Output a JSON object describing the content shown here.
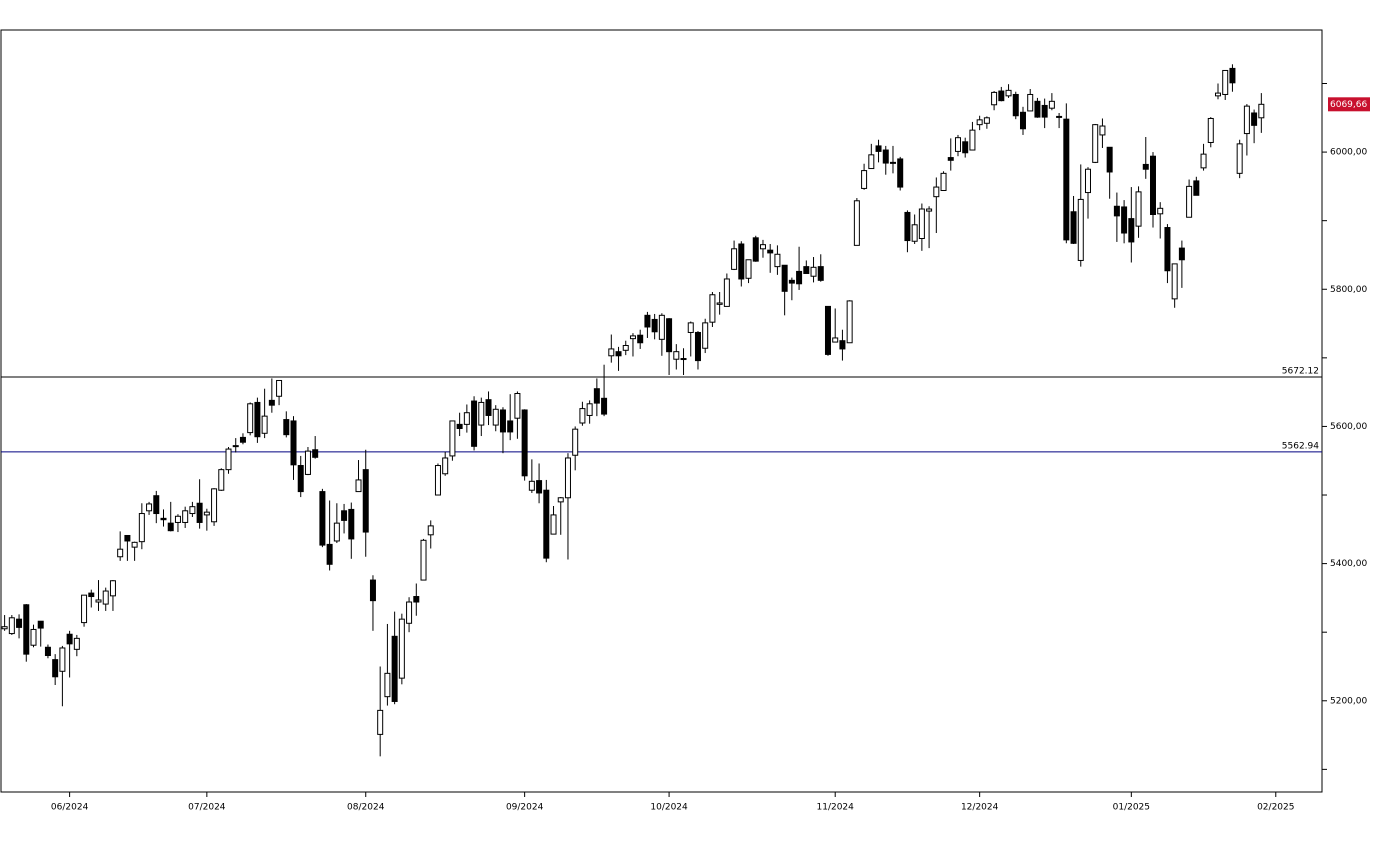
{
  "chart_data": {
    "type": "candlestick",
    "xlim": [
      -0.5,
      182.4
    ],
    "ylim": [
      5067,
      6178
    ],
    "yticks": [
      {
        "value": 5200,
        "label": "5200,00"
      },
      {
        "value": 5400,
        "label": "5400,00"
      },
      {
        "value": 5600,
        "label": "5600,00"
      },
      {
        "value": 5800,
        "label": "5800,00"
      },
      {
        "value": 6000,
        "label": "6000,00"
      }
    ],
    "yticks_minor": [
      5100,
      5300,
      5500,
      5700,
      5900,
      6100
    ],
    "xticks": [
      {
        "value": 9,
        "label": "06/2024"
      },
      {
        "value": 28,
        "label": "07/2024"
      },
      {
        "value": 50,
        "label": "08/2024"
      },
      {
        "value": 72,
        "label": "09/2024"
      },
      {
        "value": 92,
        "label": "10/2024"
      },
      {
        "value": 115,
        "label": "11/2024"
      },
      {
        "value": 135,
        "label": "12/2024"
      },
      {
        "value": 156,
        "label": "01/2025"
      },
      {
        "value": 176,
        "label": "02/2025"
      }
    ],
    "up_color": "#ffffff",
    "down_color": "#000000",
    "hlines": [
      {
        "value": 5672.12,
        "label": "5672.12",
        "color": "#000000"
      },
      {
        "value": 5562.94,
        "label": "5562.94",
        "color": "#000080"
      }
    ],
    "last_price": {
      "value": 6069.66,
      "label": "6069,66",
      "color": "#c8102e"
    },
    "ohlc": [
      [
        5305,
        5325,
        5302,
        5308
      ],
      [
        5298,
        5325,
        5296,
        5321
      ],
      [
        5319,
        5326,
        5291,
        5307
      ],
      [
        5340,
        5341,
        5257,
        5268
      ],
      [
        5281,
        5311,
        5278,
        5304
      ],
      [
        5316,
        5316,
        5279,
        5306
      ],
      [
        5278,
        5282,
        5262,
        5266
      ],
      [
        5260,
        5268,
        5223,
        5235
      ],
      [
        5243,
        5280,
        5192,
        5277
      ],
      [
        5297,
        5302,
        5234,
        5283
      ],
      [
        5275,
        5296,
        5265,
        5291
      ],
      [
        5314,
        5354,
        5308,
        5354
      ],
      [
        5357,
        5362,
        5336,
        5352
      ],
      [
        5344,
        5376,
        5331,
        5347
      ],
      [
        5341,
        5365,
        5331,
        5360
      ],
      [
        5353,
        5376,
        5331,
        5375
      ],
      [
        5410,
        5447,
        5404,
        5421
      ],
      [
        5441,
        5441,
        5404,
        5433
      ],
      [
        5424,
        5432,
        5404,
        5431
      ],
      [
        5432,
        5488,
        5421,
        5473
      ],
      [
        5477,
        5490,
        5471,
        5487
      ],
      [
        5499,
        5506,
        5459,
        5473
      ],
      [
        5466,
        5479,
        5454,
        5464
      ],
      [
        5459,
        5490,
        5447,
        5448
      ],
      [
        5460,
        5472,
        5446,
        5469
      ],
      [
        5460,
        5483,
        5452,
        5477
      ],
      [
        5473,
        5490,
        5468,
        5483
      ],
      [
        5488,
        5523,
        5451,
        5460
      ],
      [
        5471,
        5480,
        5448,
        5475
      ],
      [
        5461,
        5510,
        5455,
        5509
      ],
      [
        5507,
        5539,
        5506,
        5537
      ],
      [
        5537,
        5570,
        5531,
        5567
      ],
      [
        5572,
        5583,
        5562,
        5572
      ],
      [
        5584,
        5590,
        5574,
        5577
      ],
      [
        5591,
        5635,
        5587,
        5633
      ],
      [
        5635,
        5642,
        5576,
        5585
      ],
      [
        5590,
        5655,
        5583,
        5615
      ],
      [
        5638,
        5670,
        5620,
        5631
      ],
      [
        5644,
        5667,
        5631,
        5667
      ],
      [
        5610,
        5622,
        5584,
        5588
      ],
      [
        5608,
        5615,
        5522,
        5544
      ],
      [
        5543,
        5557,
        5497,
        5505
      ],
      [
        5530,
        5570,
        5529,
        5564
      ],
      [
        5566,
        5586,
        5553,
        5555
      ],
      [
        5505,
        5509,
        5424,
        5427
      ],
      [
        5428,
        5492,
        5390,
        5399
      ],
      [
        5433,
        5488,
        5430,
        5459
      ],
      [
        5477,
        5487,
        5444,
        5463
      ],
      [
        5479,
        5489,
        5407,
        5436
      ],
      [
        5505,
        5551,
        5505,
        5522
      ],
      [
        5537,
        5566,
        5410,
        5446
      ],
      [
        5376,
        5383,
        5302,
        5346
      ],
      [
        5151,
        5250,
        5119,
        5186
      ],
      [
        5206,
        5312,
        5193,
        5240
      ],
      [
        5294,
        5330,
        5195,
        5199
      ],
      [
        5233,
        5327,
        5224,
        5319
      ],
      [
        5313,
        5351,
        5300,
        5344
      ],
      [
        5352,
        5371,
        5324,
        5344
      ],
      [
        5376,
        5436,
        5376,
        5434
      ],
      [
        5442,
        5463,
        5422,
        5455
      ],
      [
        5500,
        5546,
        5500,
        5543
      ],
      [
        5531,
        5563,
        5528,
        5554
      ],
      [
        5557,
        5608,
        5550,
        5608
      ],
      [
        5603,
        5620,
        5586,
        5597
      ],
      [
        5603,
        5632,
        5591,
        5620
      ],
      [
        5637,
        5644,
        5565,
        5571
      ],
      [
        5602,
        5642,
        5586,
        5635
      ],
      [
        5639,
        5651,
        5602,
        5616
      ],
      [
        5602,
        5631,
        5593,
        5625
      ],
      [
        5624,
        5628,
        5561,
        5592
      ],
      [
        5608,
        5647,
        5580,
        5592
      ],
      [
        5612,
        5651,
        5582,
        5648
      ],
      [
        5624,
        5625,
        5521,
        5528
      ],
      [
        5507,
        5552,
        5503,
        5520
      ],
      [
        5521,
        5546,
        5488,
        5503
      ],
      [
        5507,
        5522,
        5402,
        5408
      ],
      [
        5443,
        5484,
        5443,
        5471
      ],
      [
        5490,
        5497,
        5442,
        5496
      ],
      [
        5496,
        5561,
        5406,
        5554
      ],
      [
        5558,
        5600,
        5536,
        5596
      ],
      [
        5605,
        5636,
        5601,
        5626
      ],
      [
        5616,
        5638,
        5604,
        5633
      ],
      [
        5655,
        5670,
        5615,
        5634
      ],
      [
        5641,
        5690,
        5615,
        5618
      ],
      [
        5703,
        5734,
        5693,
        5713
      ],
      [
        5709,
        5716,
        5681,
        5703
      ],
      [
        5711,
        5725,
        5704,
        5718
      ],
      [
        5728,
        5736,
        5702,
        5732
      ],
      [
        5733,
        5741,
        5713,
        5722
      ],
      [
        5762,
        5767,
        5729,
        5745
      ],
      [
        5756,
        5764,
        5727,
        5738
      ],
      [
        5727,
        5765,
        5703,
        5762
      ],
      [
        5757,
        5758,
        5675,
        5709
      ],
      [
        5698,
        5720,
        5683,
        5709
      ],
      [
        5698,
        5714,
        5675,
        5699
      ],
      [
        5737,
        5753,
        5702,
        5751
      ],
      [
        5737,
        5739,
        5683,
        5696
      ],
      [
        5714,
        5757,
        5707,
        5751
      ],
      [
        5752,
        5796,
        5745,
        5792
      ],
      [
        5778,
        5796,
        5763,
        5780
      ],
      [
        5775,
        5823,
        5775,
        5815
      ],
      [
        5829,
        5871,
        5828,
        5859
      ],
      [
        5866,
        5870,
        5804,
        5815
      ],
      [
        5816,
        5843,
        5809,
        5843
      ],
      [
        5875,
        5878,
        5840,
        5841
      ],
      [
        5859,
        5872,
        5846,
        5865
      ],
      [
        5857,
        5866,
        5824,
        5853
      ],
      [
        5833,
        5864,
        5821,
        5851
      ],
      [
        5835,
        5835,
        5762,
        5797
      ],
      [
        5813,
        5817,
        5784,
        5809
      ],
      [
        5826,
        5862,
        5799,
        5808
      ],
      [
        5833,
        5842,
        5823,
        5823
      ],
      [
        5819,
        5847,
        5810,
        5832
      ],
      [
        5833,
        5851,
        5811,
        5813
      ],
      [
        5775,
        5775,
        5703,
        5705
      ],
      [
        5723,
        5772,
        5723,
        5729
      ],
      [
        5725,
        5741,
        5696,
        5713
      ],
      [
        5722,
        5784,
        5722,
        5783
      ],
      [
        5864,
        5933,
        5864,
        5929
      ],
      [
        5947,
        5983,
        5945,
        5973
      ],
      [
        5976,
        6012,
        5976,
        5996
      ],
      [
        6009,
        6018,
        5985,
        6001
      ],
      [
        6003,
        6009,
        5967,
        5984
      ],
      [
        5985,
        6009,
        5969,
        5985
      ],
      [
        5990,
        5993,
        5944,
        5949
      ],
      [
        5912,
        5915,
        5854,
        5871
      ],
      [
        5870,
        5909,
        5866,
        5894
      ],
      [
        5874,
        5925,
        5856,
        5917
      ],
      [
        5914,
        5921,
        5860,
        5917
      ],
      [
        5935,
        5963,
        5882,
        5949
      ],
      [
        5944,
        5972,
        5944,
        5969
      ],
      [
        5992,
        6020,
        5973,
        5988
      ],
      [
        6001,
        6025,
        5994,
        6021
      ],
      [
        6015,
        6021,
        5992,
        5999
      ],
      [
        6003,
        6044,
        6003,
        6032
      ],
      [
        6040,
        6053,
        6032,
        6047
      ],
      [
        6042,
        6052,
        6034,
        6050
      ],
      [
        6069,
        6089,
        6061,
        6087
      ],
      [
        6089,
        6095,
        6074,
        6075
      ],
      [
        6082,
        6099,
        6079,
        6090
      ],
      [
        6084,
        6088,
        6048,
        6053
      ],
      [
        6058,
        6066,
        6025,
        6034
      ],
      [
        6060,
        6092,
        6060,
        6084
      ],
      [
        6074,
        6079,
        6050,
        6051
      ],
      [
        6068,
        6078,
        6035,
        6051
      ],
      [
        6064,
        6086,
        6061,
        6074
      ],
      [
        6052,
        6057,
        6035,
        6051
      ],
      [
        6048,
        6071,
        5867,
        5872
      ],
      [
        5913,
        5936,
        5866,
        5867
      ],
      [
        5842,
        5982,
        5833,
        5931
      ],
      [
        5941,
        5978,
        5903,
        5975
      ],
      [
        5985,
        6041,
        5984,
        6040
      ],
      [
        6025,
        6049,
        6006,
        6038
      ],
      [
        6007,
        6007,
        5932,
        5971
      ],
      [
        5921,
        5941,
        5869,
        5907
      ],
      [
        5920,
        5930,
        5867,
        5882
      ],
      [
        5903,
        5949,
        5839,
        5869
      ],
      [
        5892,
        5950,
        5875,
        5942
      ],
      [
        5982,
        6022,
        5961,
        5975
      ],
      [
        5994,
        6000,
        5890,
        5909
      ],
      [
        5910,
        5927,
        5874,
        5918
      ],
      [
        5890,
        5895,
        5809,
        5827
      ],
      [
        5786,
        5837,
        5773,
        5837
      ],
      [
        5860,
        5871,
        5802,
        5843
      ],
      [
        5905,
        5960,
        5905,
        5950
      ],
      [
        5958,
        5964,
        5938,
        5937
      ],
      [
        5977,
        6012,
        5973,
        5997
      ],
      [
        6014,
        6051,
        6007,
        6049
      ],
      [
        6082,
        6100,
        6077,
        6086
      ],
      [
        6084,
        6119,
        6076,
        6119
      ],
      [
        6122,
        6128,
        6088,
        6101
      ],
      [
        5969,
        6018,
        5962,
        6012
      ],
      [
        6027,
        6070,
        5995,
        6067
      ],
      [
        6057,
        6062,
        6013,
        6039
      ],
      [
        6050,
        6086,
        6028,
        6069.66
      ]
    ]
  }
}
